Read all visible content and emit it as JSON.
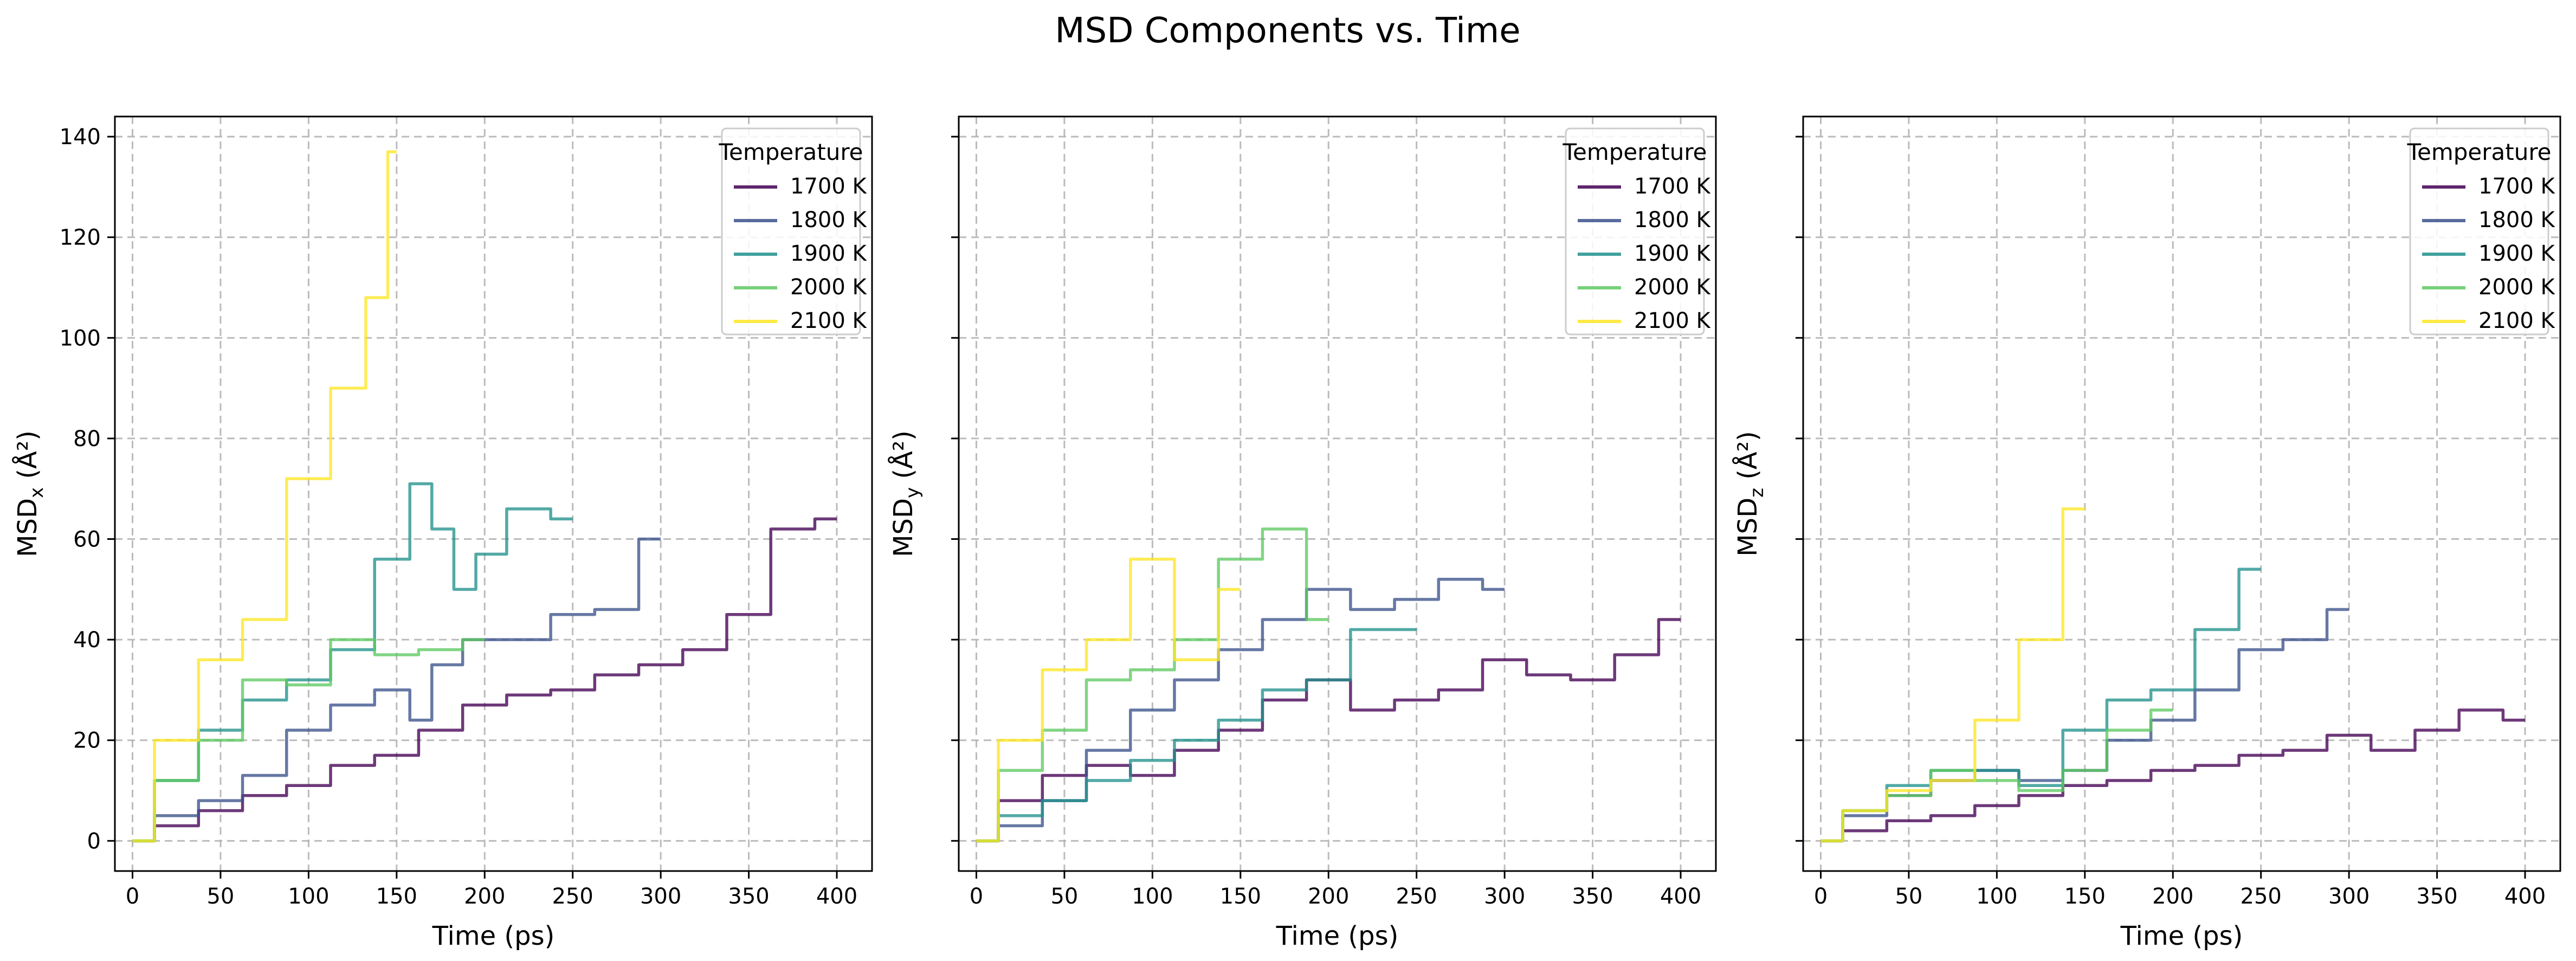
{
  "figure": {
    "title": "MSD Components vs. Time"
  },
  "chart_data": [
    {
      "type": "line",
      "title": "",
      "xlabel": "Time (ps)",
      "ylabel_main": "MSD",
      "ylabel_sub": "x",
      "ylabel_unit": " (Å²)",
      "xlim": [
        -10,
        420
      ],
      "ylim": [
        -6,
        144
      ],
      "xticks": [
        0,
        50,
        100,
        150,
        200,
        250,
        300,
        350,
        400
      ],
      "yticks": [
        0,
        20,
        40,
        60,
        80,
        100,
        120,
        140
      ],
      "show_yticklabels": true,
      "grid": true,
      "legend": {
        "title": "Temperature",
        "position": "top-right"
      },
      "series": [
        {
          "name": "1700 K",
          "color": "#440154",
          "x": [
            0,
            25,
            50,
            75,
            100,
            125,
            150,
            175,
            200,
            225,
            250,
            275,
            300,
            325,
            350,
            375,
            400
          ],
          "y": [
            0,
            3,
            6,
            9,
            11,
            15,
            17,
            22,
            27,
            29,
            30,
            33,
            35,
            38,
            45,
            62,
            64
          ]
        },
        {
          "name": "1800 K",
          "color": "#3b528b",
          "x": [
            0,
            25,
            50,
            75,
            100,
            125,
            150,
            165,
            175,
            200,
            225,
            250,
            275,
            300
          ],
          "y": [
            0,
            5,
            8,
            13,
            22,
            27,
            30,
            24,
            35,
            40,
            40,
            45,
            46,
            60
          ]
        },
        {
          "name": "1900 K",
          "color": "#21918c",
          "x": [
            0,
            25,
            50,
            75,
            100,
            125,
            150,
            165,
            175,
            190,
            200,
            225,
            250
          ],
          "y": [
            0,
            12,
            22,
            28,
            32,
            38,
            56,
            71,
            62,
            50,
            57,
            66,
            64
          ]
        },
        {
          "name": "2000 K",
          "color": "#5ec962",
          "x": [
            0,
            25,
            50,
            75,
            100,
            125,
            150,
            175,
            200
          ],
          "y": [
            0,
            12,
            20,
            32,
            31,
            40,
            37,
            38,
            40
          ]
        },
        {
          "name": "2100 K",
          "color": "#fde725",
          "x": [
            0,
            25,
            50,
            75,
            100,
            125,
            140,
            150
          ],
          "y": [
            0,
            20,
            36,
            44,
            72,
            90,
            108,
            137
          ]
        }
      ]
    },
    {
      "type": "line",
      "title": "",
      "xlabel": "Time (ps)",
      "ylabel_main": "MSD",
      "ylabel_sub": "y",
      "ylabel_unit": " (Å²)",
      "xlim": [
        -10,
        420
      ],
      "ylim": [
        -6,
        144
      ],
      "xticks": [
        0,
        50,
        100,
        150,
        200,
        250,
        300,
        350,
        400
      ],
      "yticks": [
        0,
        20,
        40,
        60,
        80,
        100,
        120,
        140
      ],
      "show_yticklabels": false,
      "grid": true,
      "legend": {
        "title": "Temperature",
        "position": "top-right"
      },
      "series": [
        {
          "name": "1700 K",
          "color": "#440154",
          "x": [
            0,
            25,
            50,
            75,
            100,
            125,
            150,
            175,
            200,
            225,
            250,
            275,
            300,
            325,
            350,
            375,
            400
          ],
          "y": [
            0,
            8,
            13,
            15,
            13,
            18,
            22,
            28,
            32,
            26,
            28,
            30,
            36,
            33,
            32,
            37,
            44
          ]
        },
        {
          "name": "1800 K",
          "color": "#3b528b",
          "x": [
            0,
            25,
            50,
            75,
            100,
            125,
            150,
            175,
            200,
            225,
            250,
            275,
            300
          ],
          "y": [
            0,
            3,
            8,
            18,
            26,
            32,
            38,
            44,
            50,
            46,
            48,
            52,
            50
          ]
        },
        {
          "name": "1900 K",
          "color": "#21918c",
          "x": [
            0,
            25,
            50,
            75,
            100,
            125,
            150,
            175,
            200,
            225,
            250
          ],
          "y": [
            0,
            5,
            8,
            12,
            16,
            20,
            24,
            30,
            32,
            42,
            42
          ]
        },
        {
          "name": "2000 K",
          "color": "#5ec962",
          "x": [
            0,
            25,
            50,
            75,
            100,
            125,
            150,
            175,
            200
          ],
          "y": [
            0,
            14,
            22,
            32,
            34,
            40,
            56,
            62,
            44
          ]
        },
        {
          "name": "2100 K",
          "color": "#fde725",
          "x": [
            0,
            25,
            50,
            75,
            100,
            125,
            150
          ],
          "y": [
            0,
            20,
            34,
            40,
            56,
            36,
            50
          ]
        }
      ]
    },
    {
      "type": "line",
      "title": "",
      "xlabel": "Time (ps)",
      "ylabel_main": "MSD",
      "ylabel_sub": "z",
      "ylabel_unit": " (Å²)",
      "xlim": [
        -10,
        420
      ],
      "ylim": [
        -6,
        144
      ],
      "xticks": [
        0,
        50,
        100,
        150,
        200,
        250,
        300,
        350,
        400
      ],
      "yticks": [
        0,
        20,
        40,
        60,
        80,
        100,
        120,
        140
      ],
      "show_yticklabels": false,
      "grid": true,
      "legend": {
        "title": "Temperature",
        "position": "top-right"
      },
      "series": [
        {
          "name": "1700 K",
          "color": "#440154",
          "x": [
            0,
            25,
            50,
            75,
            100,
            125,
            150,
            175,
            200,
            225,
            250,
            275,
            300,
            325,
            350,
            375,
            400
          ],
          "y": [
            0,
            2,
            4,
            5,
            7,
            9,
            11,
            12,
            14,
            15,
            17,
            18,
            21,
            18,
            22,
            26,
            24
          ]
        },
        {
          "name": "1800 K",
          "color": "#3b528b",
          "x": [
            0,
            25,
            50,
            75,
            100,
            125,
            150,
            175,
            200,
            225,
            250,
            275,
            300
          ],
          "y": [
            0,
            5,
            9,
            12,
            14,
            12,
            14,
            20,
            24,
            30,
            38,
            40,
            46
          ]
        },
        {
          "name": "1900 K",
          "color": "#21918c",
          "x": [
            0,
            25,
            50,
            75,
            100,
            125,
            150,
            175,
            200,
            225,
            250
          ],
          "y": [
            0,
            6,
            11,
            14,
            14,
            11,
            22,
            28,
            30,
            42,
            54
          ]
        },
        {
          "name": "2000 K",
          "color": "#5ec962",
          "x": [
            0,
            25,
            50,
            75,
            100,
            125,
            150,
            175,
            200
          ],
          "y": [
            0,
            6,
            9,
            14,
            12,
            10,
            14,
            22,
            26
          ]
        },
        {
          "name": "2100 K",
          "color": "#fde725",
          "x": [
            0,
            25,
            50,
            75,
            100,
            125,
            150
          ],
          "y": [
            0,
            6,
            10,
            12,
            24,
            40,
            66
          ]
        }
      ]
    }
  ]
}
